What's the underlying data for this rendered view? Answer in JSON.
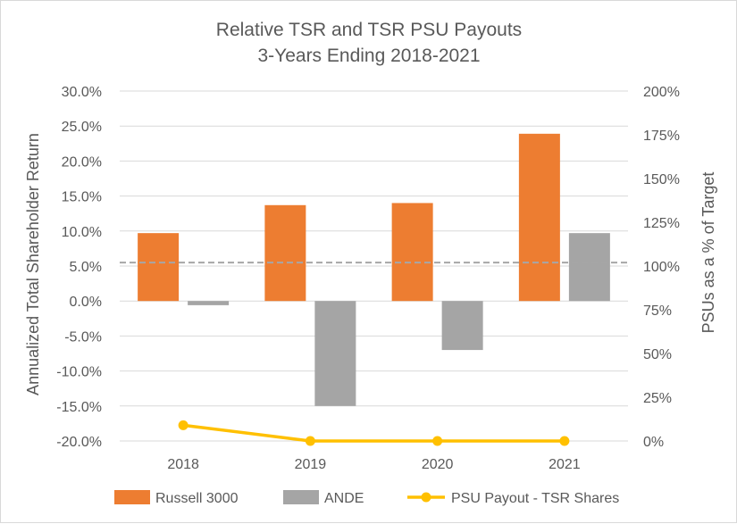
{
  "chart_data": {
    "type": "bar",
    "title": "Relative TSR and TSR PSU Payouts",
    "subtitle": "3-Years Ending 2018-2021",
    "categories": [
      "2018",
      "2019",
      "2020",
      "2021"
    ],
    "ylabel": "Annualized  Total Shareholder Return",
    "y2label": "PSUs as a % of Target",
    "ylim": [
      -0.2,
      0.3
    ],
    "y2lim": [
      0,
      2.0
    ],
    "yticks": [
      -0.2,
      -0.15,
      -0.1,
      -0.05,
      0.0,
      0.05,
      0.1,
      0.15,
      0.2,
      0.25,
      0.3
    ],
    "ytick_labels": [
      "-20.0%",
      "-15.0%",
      "-10.0%",
      "-5.0%",
      "0.0%",
      "5.0%",
      "10.0%",
      "15.0%",
      "20.0%",
      "25.0%",
      "30.0%"
    ],
    "y2ticks": [
      0,
      0.25,
      0.5,
      0.75,
      1.0,
      1.25,
      1.5,
      1.75,
      2.0
    ],
    "y2tick_labels": [
      "0%",
      "25%",
      "50%",
      "75%",
      "100%",
      "125%",
      "150%",
      "175%",
      "200%"
    ],
    "series": [
      {
        "name": "Russell 3000",
        "kind": "bar",
        "axis": "left",
        "color": "#ed7d31",
        "values": [
          0.097,
          0.137,
          0.14,
          0.239
        ]
      },
      {
        "name": "ANDE",
        "kind": "bar",
        "axis": "left",
        "color": "#a5a5a5",
        "values": [
          -0.006,
          -0.15,
          -0.07,
          0.097
        ]
      },
      {
        "name": "PSU Payout - TSR Shares",
        "kind": "line",
        "axis": "right",
        "color": "#ffc000",
        "values": [
          0.09,
          0.0,
          0.0,
          0.0
        ]
      }
    ],
    "reference_line": {
      "axis": "right",
      "value": 1.02,
      "style": "dashed",
      "color": "#a6a6a6"
    },
    "grid": true,
    "legend_position": "bottom"
  }
}
